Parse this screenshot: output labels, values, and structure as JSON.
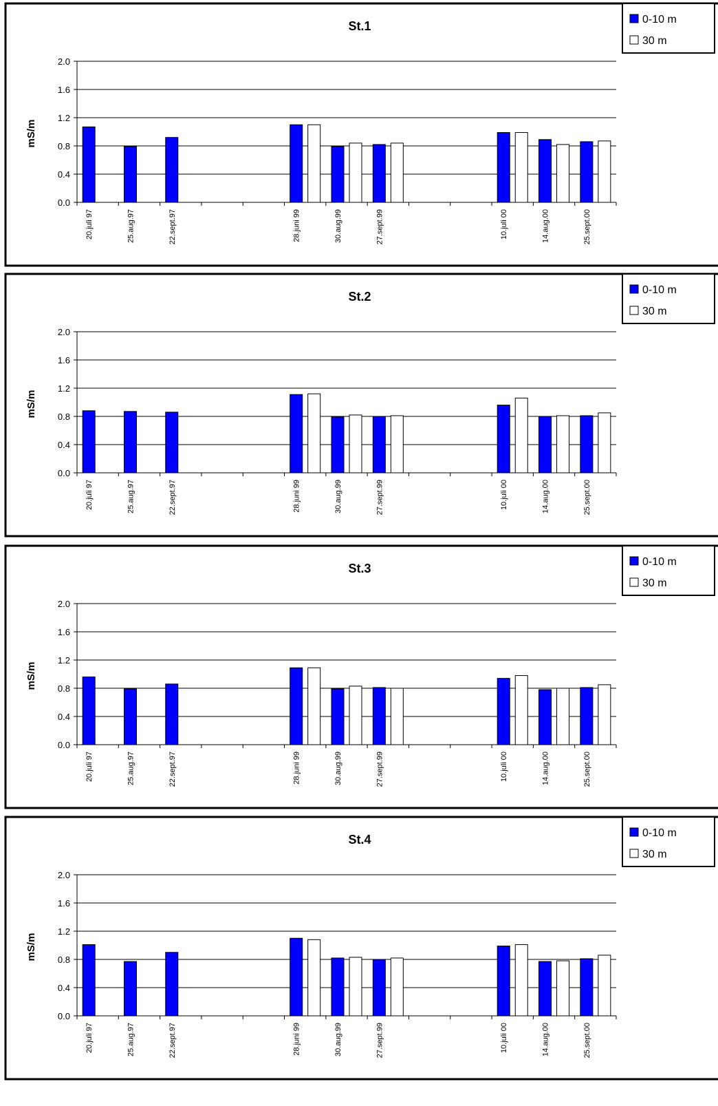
{
  "colors": {
    "series_0": "#0000ff",
    "series_1": "#ffffff",
    "border": "#000000"
  },
  "chart_data": [
    {
      "type": "bar",
      "title": "St.1",
      "xlabel": "",
      "ylabel": "mS/m",
      "ylim": [
        0,
        2
      ],
      "yticks": [
        "0.0",
        "0.4",
        "0.8",
        "1.2",
        "1.6",
        "2.0"
      ],
      "grid": true,
      "legend": "top-right",
      "categories": [
        "20.juli 97",
        "25.aug.97",
        "22.sept.97",
        "",
        "",
        "28.juni 99",
        "30.aug.99",
        "27.sept.99",
        "",
        "",
        "10.juli 00",
        "14.aug.00",
        "25.sept.00"
      ],
      "series": [
        {
          "name": "0-10 m",
          "values": [
            1.07,
            0.79,
            0.92,
            null,
            null,
            1.1,
            0.79,
            0.82,
            null,
            null,
            0.99,
            0.89,
            0.86
          ]
        },
        {
          "name": "30 m",
          "values": [
            null,
            null,
            null,
            null,
            null,
            1.1,
            0.84,
            0.84,
            null,
            null,
            0.99,
            0.82,
            0.87
          ]
        }
      ]
    },
    {
      "type": "bar",
      "title": "St.2",
      "xlabel": "",
      "ylabel": "mS/m",
      "ylim": [
        0,
        2
      ],
      "yticks": [
        "0.0",
        "0.4",
        "0.8",
        "1.2",
        "1.6",
        "2.0"
      ],
      "grid": true,
      "legend": "top-right",
      "categories": [
        "20.juli 97",
        "25.aug.97",
        "22.sept.97",
        "",
        "",
        "28.juni 99",
        "30.aug.99",
        "27.sept.99",
        "",
        "",
        "10.juli 00",
        "14.aug.00",
        "25.sept.00"
      ],
      "series": [
        {
          "name": "0-10 m",
          "values": [
            0.88,
            0.87,
            0.86,
            null,
            null,
            1.11,
            0.79,
            0.8,
            null,
            null,
            0.96,
            0.8,
            0.81
          ]
        },
        {
          "name": "30 m",
          "values": [
            null,
            null,
            null,
            null,
            null,
            1.12,
            0.82,
            0.81,
            null,
            null,
            1.06,
            0.81,
            0.85
          ]
        }
      ]
    },
    {
      "type": "bar",
      "title": "St.3",
      "xlabel": "",
      "ylabel": "mS/m",
      "ylim": [
        0,
        2
      ],
      "yticks": [
        "0.0",
        "0.4",
        "0.8",
        "1.2",
        "1.6",
        "2.0"
      ],
      "grid": true,
      "legend": "top-right",
      "categories": [
        "20.juli 97",
        "25.aug.97",
        "22.sept.97",
        "",
        "",
        "28.juni 99",
        "30.aug.99",
        "27.sept.99",
        "",
        "",
        "10.juli 00",
        "14.aug.00",
        "25.sept.00"
      ],
      "series": [
        {
          "name": "0-10 m",
          "values": [
            0.96,
            0.79,
            0.86,
            null,
            null,
            1.09,
            0.79,
            0.81,
            null,
            null,
            0.94,
            0.78,
            0.81
          ]
        },
        {
          "name": "30 m",
          "values": [
            null,
            null,
            null,
            null,
            null,
            1.09,
            0.83,
            0.8,
            null,
            null,
            0.98,
            0.8,
            0.85
          ]
        }
      ]
    },
    {
      "type": "bar",
      "title": "St.4",
      "xlabel": "",
      "ylabel": "mS/m",
      "ylim": [
        0,
        2
      ],
      "yticks": [
        "0.0",
        "0.4",
        "0.8",
        "1.2",
        "1.6",
        "2.0"
      ],
      "grid": true,
      "legend": "top-right",
      "categories": [
        "20.juli 97",
        "25.aug.97",
        "22.sept.97",
        "",
        "",
        "28.juni 99",
        "30.aug.99",
        "27.sept.99",
        "",
        "",
        "10.juli 00",
        "14.aug.00",
        "25.sept.00"
      ],
      "series": [
        {
          "name": "0-10 m",
          "values": [
            1.01,
            0.77,
            0.9,
            null,
            null,
            1.1,
            0.82,
            0.8,
            null,
            null,
            0.99,
            0.77,
            0.81
          ]
        },
        {
          "name": "30 m",
          "values": [
            null,
            null,
            null,
            null,
            null,
            1.08,
            0.83,
            0.82,
            null,
            null,
            1.01,
            0.78,
            0.86
          ]
        }
      ]
    }
  ]
}
